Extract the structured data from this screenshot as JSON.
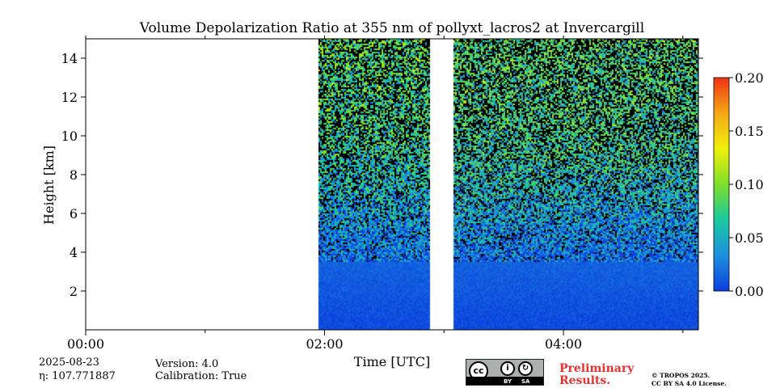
{
  "title": "Volume Depolarization Ratio at 355 nm of pollyxt_lacros2 at Invercargill",
  "footer": {
    "date": "2025-08-23",
    "eta": "η: 107.771887",
    "version": "Version: 4.0",
    "calibration": "Calibration: True",
    "preliminary_line1": "Preliminary",
    "preliminary_line2": "Results.",
    "copyright_line1": "© TROPOS 2025.",
    "copyright_line2": "CC BY SA 4.0 License.",
    "license_badge": {
      "by": "BY",
      "sa": "SA",
      "cc": "cc"
    }
  },
  "chart_data": {
    "type": "heatmap",
    "title": "Volume Depolarization Ratio at 355 nm of pollyxt_lacros2 at Invercargill",
    "xlabel": "Time [UTC]",
    "ylabel": "Height [km]",
    "x_ticks": [
      "00:00",
      "02:00",
      "04:00"
    ],
    "x_tick_hours": [
      0,
      2,
      4
    ],
    "xlim_hours": [
      0,
      5.13
    ],
    "y_ticks": [
      2,
      4,
      6,
      8,
      10,
      12,
      14
    ],
    "ylim_km": [
      0,
      15
    ],
    "data_segments_hours": [
      [
        1.95,
        2.88
      ],
      [
        3.08,
        5.13
      ]
    ],
    "no_data_periods_hours": [
      [
        0,
        1.95
      ],
      [
        2.88,
        3.08
      ]
    ],
    "signal_profile": [
      {
        "height_km": 0.5,
        "depol": 0.005
      },
      {
        "height_km": 2,
        "depol": 0.01
      },
      {
        "height_km": 3.8,
        "depol": 0.015
      },
      {
        "height_km": 6,
        "depol": 0.04
      },
      {
        "height_km": 10,
        "depol": 0.07
      },
      {
        "height_km": 15,
        "depol": 0.08
      }
    ],
    "colorbar": {
      "min": 0.0,
      "max": 0.2,
      "ticks": [
        "0.00",
        "0.05",
        "0.10",
        "0.15",
        "0.20"
      ],
      "tick_values": [
        0.0,
        0.05,
        0.1,
        0.15,
        0.2
      ],
      "colormap": [
        "#0a3fdd",
        "#1e90e0",
        "#19c9a0",
        "#7de02a",
        "#f0f00a",
        "#f5a814",
        "#f03214"
      ]
    },
    "grid": false
  }
}
